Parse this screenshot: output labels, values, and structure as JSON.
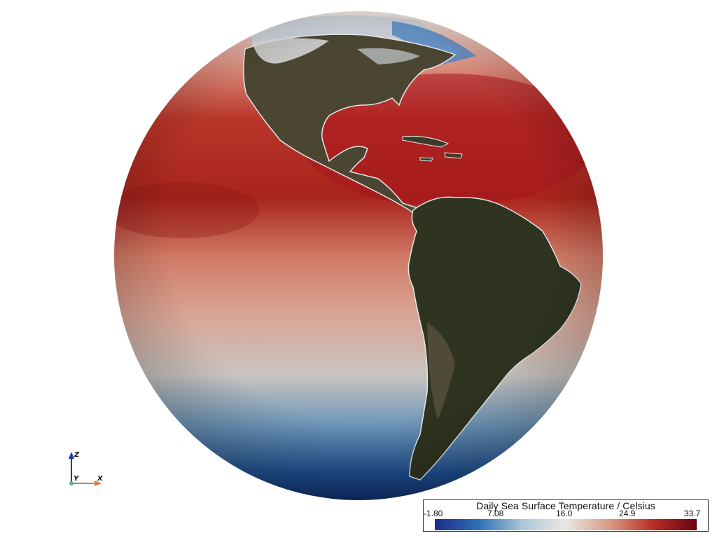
{
  "colorbar": {
    "title": "Daily Sea Surface Temperature / Celsius",
    "ticks": [
      "-1.80",
      "7.08",
      "16.0",
      "24.9",
      "33.7"
    ],
    "colors": [
      "#1b2d8a",
      "#2e6fb5",
      "#a9c7d8",
      "#ebe7e2",
      "#d99b86",
      "#b72f22",
      "#6a0011"
    ]
  },
  "axes": {
    "z": "Z",
    "y": "Y",
    "x": "X"
  }
}
